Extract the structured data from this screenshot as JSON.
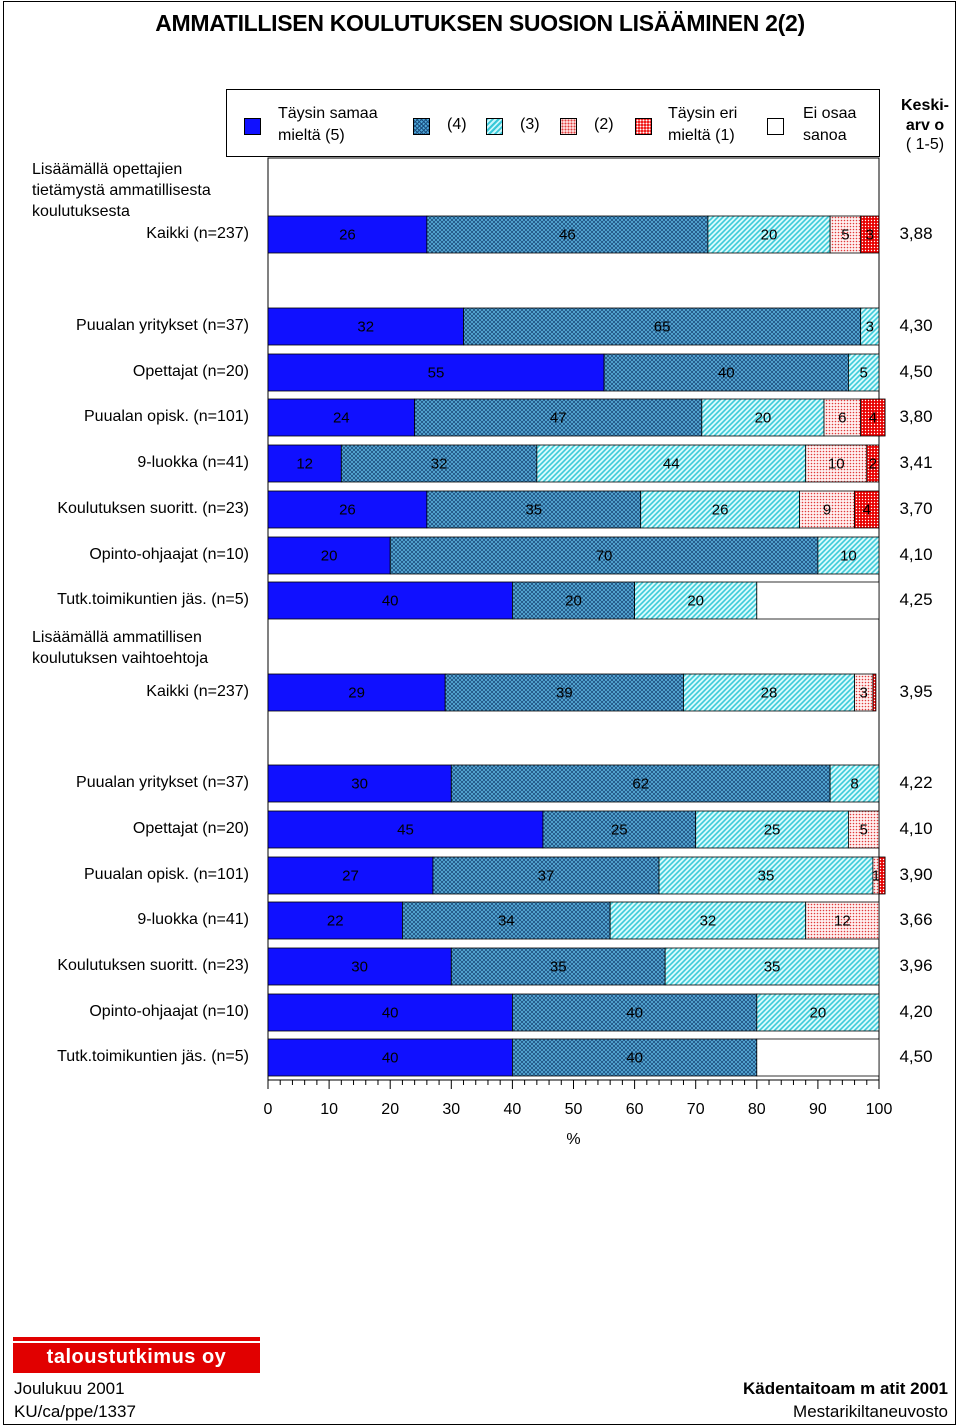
{
  "title": "AMMATILLISEN KOULUTUKSEN SUOSION LISÄÄMINEN  2(2)",
  "legend": {
    "items": [
      {
        "label": "Täysin samaa\nmieltä (5)",
        "color": "#1010ff",
        "pattern": "solid-blue"
      },
      {
        "label": "(4)",
        "color": "#4fa8d8",
        "pattern": "crosshatch"
      },
      {
        "label": "(3)",
        "color": "#70e4ee",
        "pattern": "diagonal"
      },
      {
        "label": "(2)",
        "color": "#ff9090",
        "pattern": "dots"
      },
      {
        "label": "Täysin eri\nmieltä (1)",
        "color": "#ee0000",
        "pattern": "red-grid"
      },
      {
        "label": "Ei osaa\nsanoa",
        "color": "#ffffff",
        "pattern": "none"
      }
    ],
    "mean_header_bold": "Keski-\narv o",
    "mean_header_scale": "( 1-5)"
  },
  "sections": [
    {
      "heading": "Lisäämällä opettajien\ntietämystä ammatillisesta\nkoulutuksesta"
    },
    {
      "heading": "Lisäämällä ammatillisen\nkoulutuksen vaihtoehtoja"
    }
  ],
  "chart_data": {
    "type": "bar",
    "orientation": "horizontal-stacked-percent",
    "xlabel": "%",
    "xlim": [
      0,
      100
    ],
    "x_ticks": [
      "0",
      "10",
      "20",
      "30",
      "40",
      "50",
      "60",
      "70",
      "80",
      "90",
      "100"
    ],
    "series_names": [
      "Täysin samaa mieltä (5)",
      "(4)",
      "(3)",
      "(2)",
      "Täysin eri mieltä (1)",
      "Ei osaa sanoa"
    ],
    "rows": [
      {
        "label": "Kaikki (n=237)",
        "values": [
          26,
          46,
          20,
          5,
          3,
          0
        ],
        "labels": [
          "26",
          "46",
          "20",
          "5",
          "3",
          ""
        ],
        "mean": "3,88"
      },
      {
        "label": "Puualan yritykset (n=37)",
        "values": [
          32,
          65,
          3,
          0,
          0,
          0
        ],
        "labels": [
          "32",
          "65",
          "3",
          "",
          "",
          ""
        ],
        "mean": "4,30"
      },
      {
        "label": "Opettajat (n=20)",
        "values": [
          55,
          40,
          5,
          0,
          0,
          0
        ],
        "labels": [
          "55",
          "40",
          "5",
          "",
          "",
          ""
        ],
        "mean": "4,50"
      },
      {
        "label": "Puualan opisk. (n=101)",
        "values": [
          24,
          47,
          20,
          6,
          4,
          0
        ],
        "labels": [
          "24",
          "47",
          "20",
          "6",
          "4",
          ""
        ],
        "mean": "3,80"
      },
      {
        "label": "9-luokka (n=41)",
        "values": [
          12,
          32,
          44,
          10,
          2,
          0
        ],
        "labels": [
          "12",
          "32",
          "44",
          "10",
          "2",
          ""
        ],
        "mean": "3,41"
      },
      {
        "label": "Koulutuksen suoritt. (n=23)",
        "values": [
          26,
          35,
          26,
          9,
          4,
          0
        ],
        "labels": [
          "26",
          "35",
          "26",
          "9",
          "4",
          ""
        ],
        "mean": "3,70"
      },
      {
        "label": "Opinto-ohjaajat (n=10)",
        "values": [
          20,
          70,
          10,
          0,
          0,
          0
        ],
        "labels": [
          "20",
          "70",
          "10",
          "",
          "",
          ""
        ],
        "mean": "4,10"
      },
      {
        "label": "Tutk.toimikuntien jäs. (n=5)",
        "values": [
          40,
          20,
          20,
          0,
          0,
          20
        ],
        "labels": [
          "40",
          "20",
          "20",
          "",
          "",
          ""
        ],
        "mean": "4,25"
      },
      {
        "label": "Kaikki (n=237)",
        "values": [
          29,
          39,
          28,
          3,
          0.5,
          0
        ],
        "labels": [
          "29",
          "39",
          "28",
          "3",
          "",
          ""
        ],
        "mean": "3,95"
      },
      {
        "label": "Puualan yritykset (n=37)",
        "values": [
          30,
          62,
          8,
          0,
          0,
          0
        ],
        "labels": [
          "30",
          "62",
          "8",
          "",
          "",
          ""
        ],
        "mean": "4,22"
      },
      {
        "label": "Opettajat (n=20)",
        "values": [
          45,
          25,
          25,
          5,
          0,
          0
        ],
        "labels": [
          "45",
          "25",
          "25",
          "5",
          "",
          ""
        ],
        "mean": "4,10"
      },
      {
        "label": "Puualan opisk. (n=101)",
        "values": [
          27,
          37,
          35,
          1,
          1,
          0
        ],
        "labels": [
          "27",
          "37",
          "35",
          "1",
          "",
          ""
        ],
        "mean": "3,90"
      },
      {
        "label": "9-luokka (n=41)",
        "values": [
          22,
          34,
          32,
          12,
          0,
          0
        ],
        "labels": [
          "22",
          "34",
          "32",
          "12",
          "",
          ""
        ],
        "mean": "3,66"
      },
      {
        "label": "Koulutuksen suoritt. (n=23)",
        "values": [
          30,
          35,
          35,
          0,
          0,
          0
        ],
        "labels": [
          "30",
          "35",
          "35",
          "",
          "",
          ""
        ],
        "mean": "3,96"
      },
      {
        "label": "Opinto-ohjaajat (n=10)",
        "values": [
          40,
          40,
          20,
          0,
          0,
          0
        ],
        "labels": [
          "40",
          "40",
          "20",
          "",
          "",
          ""
        ],
        "mean": "4,20"
      },
      {
        "label": "Tutk.toimikuntien jäs. (n=5)",
        "values": [
          40,
          40,
          0,
          0,
          0,
          20
        ],
        "labels": [
          "40",
          "40",
          "",
          "",
          "",
          ""
        ],
        "mean": "4,50"
      }
    ]
  },
  "footer": {
    "brand": "taloustutkimus oy",
    "date": "Joulukuu 2001",
    "code": "KU/ca/ppe/1337",
    "report": "Kädentaitoam m atit 2001",
    "client": "Mestarikiltaneuvosto"
  }
}
